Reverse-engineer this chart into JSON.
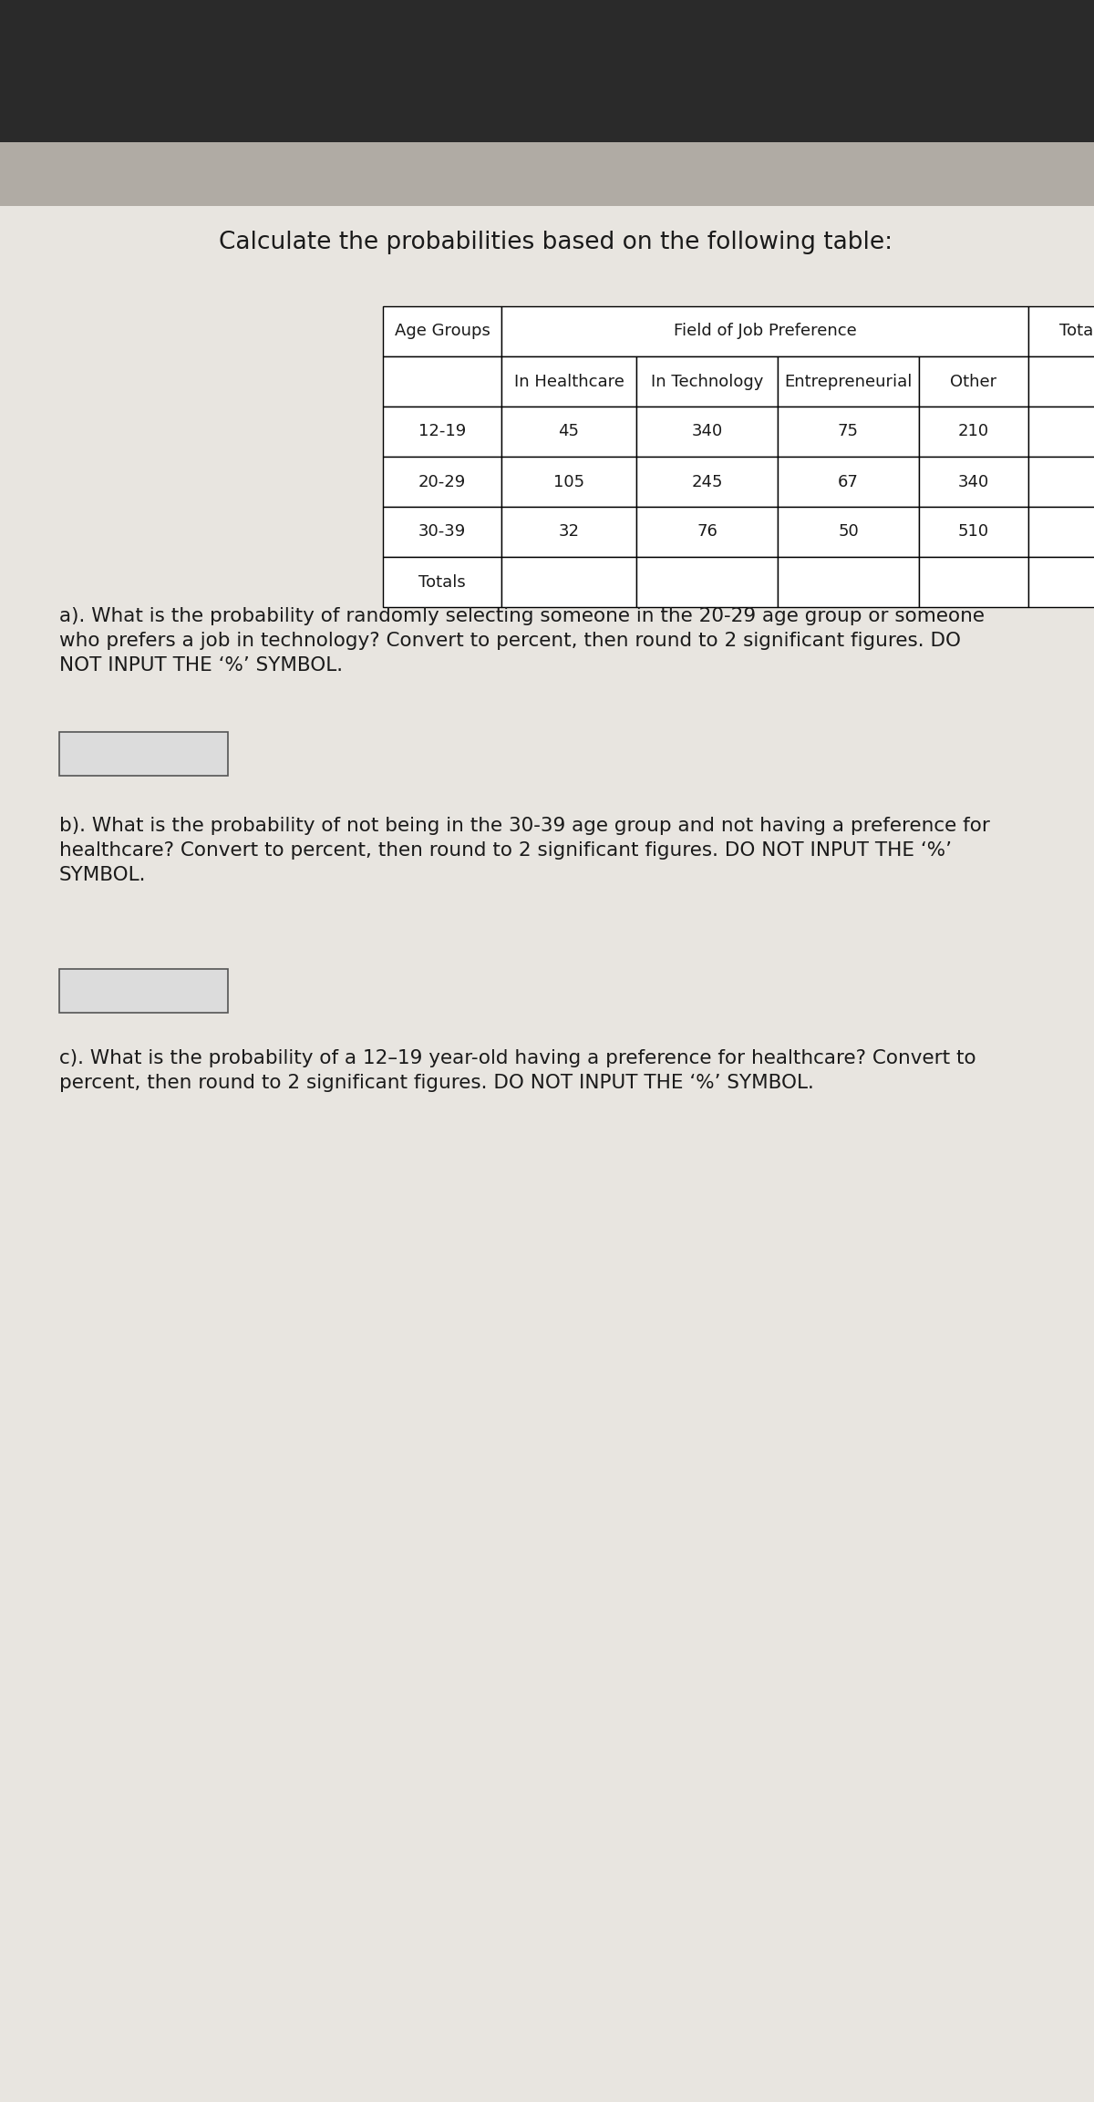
{
  "title": "Calculate the probabilities based on the following table:",
  "col_headers_row1": [
    "Age Groups",
    "Field of Job Preference",
    "Totals"
  ],
  "col_headers_row2": [
    "In Healthcare",
    "In Technology",
    "Entrepreneurial",
    "Other"
  ],
  "rows": [
    [
      "12-19",
      "45",
      "340",
      "75",
      "210",
      ""
    ],
    [
      "20-29",
      "105",
      "245",
      "67",
      "340",
      ""
    ],
    [
      "30-39",
      "32",
      "76",
      "50",
      "510",
      ""
    ],
    [
      "Totals",
      "",
      "",
      "",
      "",
      ""
    ]
  ],
  "question_a": "a). What is the probability of randomly selecting someone in the 20-29 age group or someone\nwho prefers a job in technology? Convert to percent, then round to 2 significant figures. DO\nNOT INPUT THE ‘%’ SYMBOL.",
  "question_b": "b). What is the probability of not being in the 30-39 age group and not having a preference for\nhealthcare? Convert to percent, then round to 2 significant figures. DO NOT INPUT THE ‘%’\nSYMBOL.",
  "question_c": "c). What is the probability of a 12–19 year-old having a preference for healthcare? Convert to\npercent, then round to 2 significant figures. DO NOT INPUT THE ‘%’ SYMBOL.",
  "dark_top_color": "#2a2a2a",
  "paper_color": "#e8e5e0",
  "text_color": "#1a1a1a",
  "table_bg": "#ffffff",
  "answer_box_color": "#dcdcdc"
}
